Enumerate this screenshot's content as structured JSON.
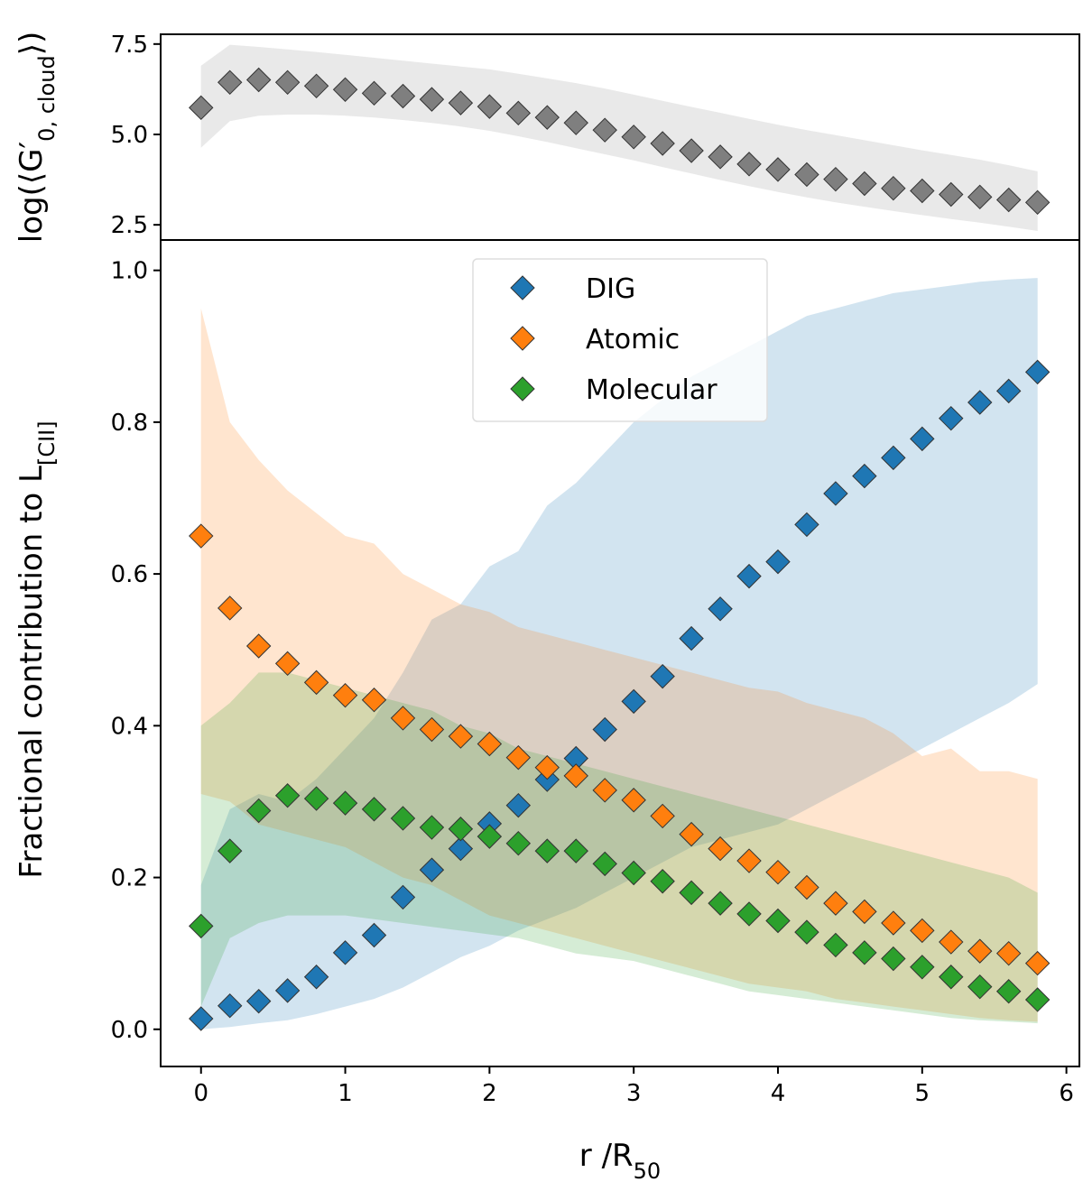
{
  "chart_data": [
    {
      "type": "scatter",
      "ylabel": {
        "text": "log(⟨G′",
        "sub": "0, cloud",
        "tail": "⟩)"
      },
      "x": [
        0,
        0.2,
        0.4,
        0.6,
        0.8,
        1.0,
        1.2,
        1.4,
        1.6,
        1.8,
        2.0,
        2.2,
        2.4,
        2.6,
        2.8,
        3.0,
        3.2,
        3.4,
        3.6,
        3.8,
        4.0,
        4.2,
        4.4,
        4.6,
        4.8,
        5.0,
        5.2,
        5.4,
        5.6,
        5.8
      ],
      "xlim": [
        -0.28,
        6.09
      ],
      "ylim": [
        2.08,
        7.77
      ],
      "yticks": [
        2.5,
        {
          "value": 5.0,
          "label": "5.0"
        },
        7.5
      ],
      "series": [
        {
          "color": "#7f7f7f",
          "band_color": "#d3d3d3",
          "band_alpha": 0.5,
          "values": [
            5.74,
            6.44,
            6.51,
            6.44,
            6.34,
            6.24,
            6.14,
            6.06,
            5.97,
            5.87,
            5.77,
            5.59,
            5.47,
            5.32,
            5.12,
            4.93,
            4.75,
            4.55,
            4.38,
            4.18,
            4.03,
            3.89,
            3.76,
            3.64,
            3.51,
            3.44,
            3.34,
            3.27,
            3.19,
            3.12
          ],
          "upper": [
            6.9,
            7.48,
            7.42,
            7.35,
            7.28,
            7.2,
            7.12,
            7.04,
            6.96,
            6.88,
            6.8,
            6.68,
            6.55,
            6.42,
            6.27,
            6.1,
            5.93,
            5.76,
            5.6,
            5.43,
            5.27,
            5.12,
            4.98,
            4.84,
            4.7,
            4.56,
            4.43,
            4.3,
            4.15,
            3.98
          ],
          "lower": [
            4.63,
            5.37,
            5.52,
            5.55,
            5.55,
            5.52,
            5.47,
            5.4,
            5.32,
            5.22,
            5.1,
            4.95,
            4.79,
            4.62,
            4.45,
            4.28,
            4.1,
            3.92,
            3.74,
            3.57,
            3.41,
            3.26,
            3.12,
            3.0,
            2.88,
            2.77,
            2.66,
            2.56,
            2.45,
            2.33
          ]
        }
      ]
    },
    {
      "type": "scatter",
      "ylabel": {
        "text": "Fractional contribution to L",
        "sub": "[CII]"
      },
      "xlabel": {
        "text": "r /R",
        "sub": "50"
      },
      "x": [
        0,
        0.2,
        0.4,
        0.6,
        0.8,
        1.0,
        1.2,
        1.4,
        1.6,
        1.8,
        2.0,
        2.2,
        2.4,
        2.6,
        2.8,
        3.0,
        3.2,
        3.4,
        3.6,
        3.8,
        4.0,
        4.2,
        4.4,
        4.6,
        4.8,
        5.0,
        5.2,
        5.4,
        5.6,
        5.8
      ],
      "xlim": [
        -0.28,
        6.09
      ],
      "xticks": [
        0,
        1,
        2,
        3,
        4,
        5,
        6
      ],
      "ylim": [
        -0.049,
        1.04
      ],
      "yticks": [
        {
          "value": 0.0,
          "label": "0.0"
        },
        0.2,
        0.4,
        0.6,
        0.8,
        {
          "value": 1.0,
          "label": "1.0"
        }
      ],
      "legend": "upper center",
      "series": [
        {
          "name": "DIG",
          "color": "#1f77b4",
          "band_alpha": 0.2,
          "values": [
            0.014,
            0.031,
            0.037,
            0.051,
            0.069,
            0.101,
            0.124,
            0.174,
            0.21,
            0.238,
            0.271,
            0.295,
            0.329,
            0.357,
            0.395,
            0.432,
            0.465,
            0.515,
            0.554,
            0.597,
            0.616,
            0.665,
            0.706,
            0.729,
            0.753,
            0.778,
            0.805,
            0.826,
            0.841,
            0.866
          ],
          "upper": [
            0.19,
            0.29,
            0.31,
            0.3,
            0.33,
            0.37,
            0.41,
            0.47,
            0.54,
            0.56,
            0.61,
            0.63,
            0.69,
            0.72,
            0.76,
            0.8,
            0.83,
            0.86,
            0.88,
            0.9,
            0.92,
            0.94,
            0.95,
            0.96,
            0.97,
            0.975,
            0.98,
            0.985,
            0.988,
            0.99
          ],
          "lower": [
            0.0,
            0.003,
            0.008,
            0.012,
            0.02,
            0.03,
            0.04,
            0.055,
            0.075,
            0.095,
            0.11,
            0.13,
            0.145,
            0.16,
            0.18,
            0.2,
            0.22,
            0.24,
            0.25,
            0.26,
            0.27,
            0.29,
            0.31,
            0.33,
            0.35,
            0.37,
            0.39,
            0.41,
            0.43,
            0.455
          ]
        },
        {
          "name": "Atomic",
          "color": "#ff7f0e",
          "band_alpha": 0.2,
          "values": [
            0.65,
            0.555,
            0.505,
            0.482,
            0.457,
            0.44,
            0.434,
            0.41,
            0.395,
            0.386,
            0.376,
            0.358,
            0.345,
            0.334,
            0.315,
            0.302,
            0.281,
            0.257,
            0.238,
            0.222,
            0.207,
            0.187,
            0.166,
            0.155,
            0.14,
            0.13,
            0.115,
            0.103,
            0.1,
            0.087
          ],
          "upper": [
            0.95,
            0.8,
            0.75,
            0.71,
            0.68,
            0.65,
            0.64,
            0.6,
            0.58,
            0.56,
            0.55,
            0.53,
            0.52,
            0.51,
            0.5,
            0.49,
            0.48,
            0.47,
            0.46,
            0.45,
            0.445,
            0.43,
            0.42,
            0.41,
            0.39,
            0.36,
            0.37,
            0.34,
            0.34,
            0.33
          ],
          "lower": [
            0.31,
            0.3,
            0.27,
            0.26,
            0.25,
            0.24,
            0.22,
            0.2,
            0.19,
            0.17,
            0.15,
            0.14,
            0.13,
            0.12,
            0.11,
            0.1,
            0.09,
            0.08,
            0.07,
            0.06,
            0.055,
            0.05,
            0.04,
            0.035,
            0.03,
            0.025,
            0.02,
            0.015,
            0.012,
            0.01
          ]
        },
        {
          "name": "Molecular",
          "color": "#2ca02c",
          "band_alpha": 0.2,
          "values": [
            0.136,
            0.235,
            0.288,
            0.308,
            0.304,
            0.298,
            0.29,
            0.278,
            0.266,
            0.264,
            0.254,
            0.245,
            0.235,
            0.235,
            0.218,
            0.206,
            0.195,
            0.18,
            0.166,
            0.152,
            0.143,
            0.128,
            0.111,
            0.101,
            0.093,
            0.082,
            0.069,
            0.056,
            0.05,
            0.039
          ],
          "upper": [
            0.4,
            0.43,
            0.47,
            0.47,
            0.46,
            0.45,
            0.44,
            0.43,
            0.42,
            0.4,
            0.39,
            0.37,
            0.36,
            0.35,
            0.34,
            0.33,
            0.32,
            0.31,
            0.3,
            0.29,
            0.28,
            0.27,
            0.26,
            0.25,
            0.24,
            0.23,
            0.22,
            0.21,
            0.2,
            0.18
          ],
          "lower": [
            0.03,
            0.12,
            0.14,
            0.15,
            0.15,
            0.15,
            0.145,
            0.14,
            0.135,
            0.13,
            0.125,
            0.12,
            0.11,
            0.1,
            0.095,
            0.09,
            0.08,
            0.07,
            0.06,
            0.05,
            0.045,
            0.04,
            0.035,
            0.03,
            0.025,
            0.02,
            0.015,
            0.012,
            0.01,
            0.008
          ]
        }
      ]
    }
  ]
}
